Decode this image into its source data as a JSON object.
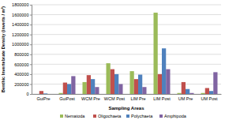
{
  "chart_data": {
    "type": "bar",
    "x_label": "Sampling Areas",
    "y_label": "Benthic Invertebrate Density (inverts / m²)",
    "categories": [
      "GuiPre",
      "GuiPost",
      "WCM Pre",
      "WCM Post",
      "LIM Pre",
      "LIM Post",
      "UM Pre",
      "UM Post"
    ],
    "series": [
      {
        "name": "Nematoda",
        "color": "#9bbb59",
        "values": [
          0,
          20000,
          240000,
          620000,
          460000,
          1640000,
          20000,
          20000
        ]
      },
      {
        "name": "Oligochaeta",
        "color": "#c0504d",
        "values": [
          60000,
          230000,
          380000,
          500000,
          300000,
          400000,
          240000,
          120000
        ]
      },
      {
        "name": "Polychaeta",
        "color": "#4f81bd",
        "values": [
          10000,
          200000,
          300000,
          400000,
          390000,
          920000,
          100000,
          60000
        ]
      },
      {
        "name": "Amphipoda",
        "color": "#8064a2",
        "values": [
          0,
          360000,
          140000,
          200000,
          140000,
          500000,
          20000,
          440000
        ]
      }
    ],
    "ylim": [
      0,
      1800000
    ],
    "yticks": [
      0,
      200000,
      400000,
      600000,
      800000,
      1000000,
      1200000,
      1400000,
      1600000,
      1800000
    ],
    "grid": true,
    "legend": "bottom"
  }
}
